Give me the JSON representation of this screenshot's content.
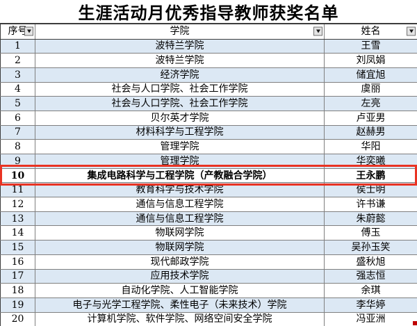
{
  "title": "生涯活动月优秀指导教师获奖名单",
  "columns": {
    "no": "序号",
    "college": "学院",
    "name": "姓名"
  },
  "filter_icon": "filter-dropdown-triangle",
  "rows": [
    {
      "no": "1",
      "college": "波特兰学院",
      "name": "王雪"
    },
    {
      "no": "2",
      "college": "波特兰学院",
      "name": "刘凤娟"
    },
    {
      "no": "3",
      "college": "经济学院",
      "name": "储宜旭"
    },
    {
      "no": "4",
      "college": "社会与人口学院、社会工作学院",
      "name": "虞丽"
    },
    {
      "no": "5",
      "college": "社会与人口学院、社会工作学院",
      "name": "左亮"
    },
    {
      "no": "6",
      "college": "贝尔英才学院",
      "name": "卢亚男"
    },
    {
      "no": "7",
      "college": "材料科学与工程学院",
      "name": "赵赫男"
    },
    {
      "no": "8",
      "college": "管理学院",
      "name": "华阳"
    },
    {
      "no": "9",
      "college": "管理学院",
      "name": "华奕曦"
    },
    {
      "no": "10",
      "college": "集成电路科学与工程学院（产教融合学院）",
      "name": "王永鹏"
    },
    {
      "no": "11",
      "college": "教育科学与技术学院",
      "name": "侯士明"
    },
    {
      "no": "12",
      "college": "通信与信息工程学院",
      "name": "许书谦"
    },
    {
      "no": "13",
      "college": "通信与信息工程学院",
      "name": "朱蔚懿"
    },
    {
      "no": "14",
      "college": "物联网学院",
      "name": "傅玉"
    },
    {
      "no": "15",
      "college": "物联网学院",
      "name": "吴孙玉笑"
    },
    {
      "no": "16",
      "college": "现代邮政学院",
      "name": "盛秋旭"
    },
    {
      "no": "17",
      "college": "应用技术学院",
      "name": "强志恒"
    },
    {
      "no": "18",
      "college": "自动化学院、人工智能学院",
      "name": "余琪"
    },
    {
      "no": "19",
      "college": "电子与光学工程学院、柔性电子（未来技术）学院",
      "name": "李华婷"
    },
    {
      "no": "20",
      "college": "计算机学院、软件学院、网络空间安全学院",
      "name": "冯亚洲"
    }
  ],
  "highlight": {
    "row_number": "10",
    "border_color": "#e93323"
  },
  "colors": {
    "row_alt_blue": "#dce8f4",
    "grid_line": "#7f7f7f",
    "outer_line": "#3c3c3c",
    "highlight_red": "#e93323"
  }
}
